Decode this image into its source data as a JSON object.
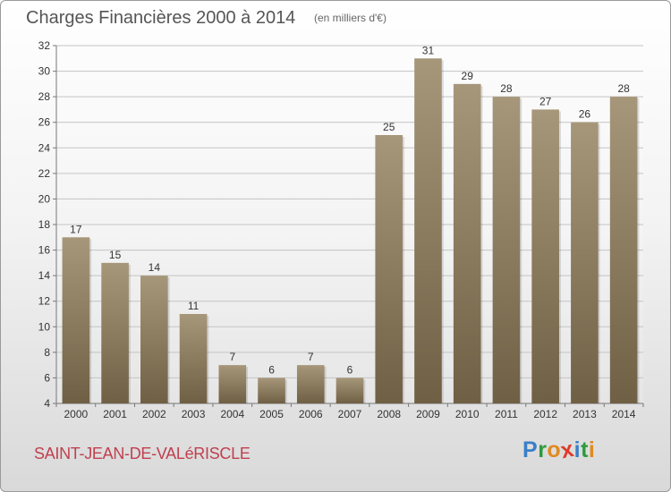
{
  "header": {
    "title": "Charges Financières 2000 à 2014",
    "subtitle": "(en milliers d'€)"
  },
  "footer": {
    "town": "SAINT-JEAN-DE-VALéRISCLE",
    "logo_letters": [
      "P",
      "r",
      "o",
      "x",
      "i",
      "t",
      "i"
    ]
  },
  "colors": {
    "bar": "#8a7a5c",
    "logo": [
      "#3a7fc8",
      "#2e9a3e",
      "#e08a1f",
      "#e03a2a",
      "#3a7fc8",
      "#2e9a3e",
      "#e08a1f"
    ]
  },
  "chart_data": {
    "type": "bar",
    "title": "Charges Financières 2000 à 2014",
    "subtitle": "(en milliers d'€)",
    "categories": [
      "2000",
      "2001",
      "2002",
      "2003",
      "2004",
      "2005",
      "2006",
      "2007",
      "2008",
      "2009",
      "2010",
      "2011",
      "2012",
      "2013",
      "2014"
    ],
    "values": [
      17,
      15,
      14,
      11,
      7,
      6,
      7,
      6,
      25,
      31,
      29,
      28,
      27,
      26,
      28
    ],
    "ylim": [
      4,
      32
    ],
    "yticks": [
      4,
      6,
      8,
      10,
      12,
      14,
      16,
      18,
      20,
      22,
      24,
      26,
      28,
      30,
      32
    ],
    "grid": true,
    "data_labels": true
  }
}
